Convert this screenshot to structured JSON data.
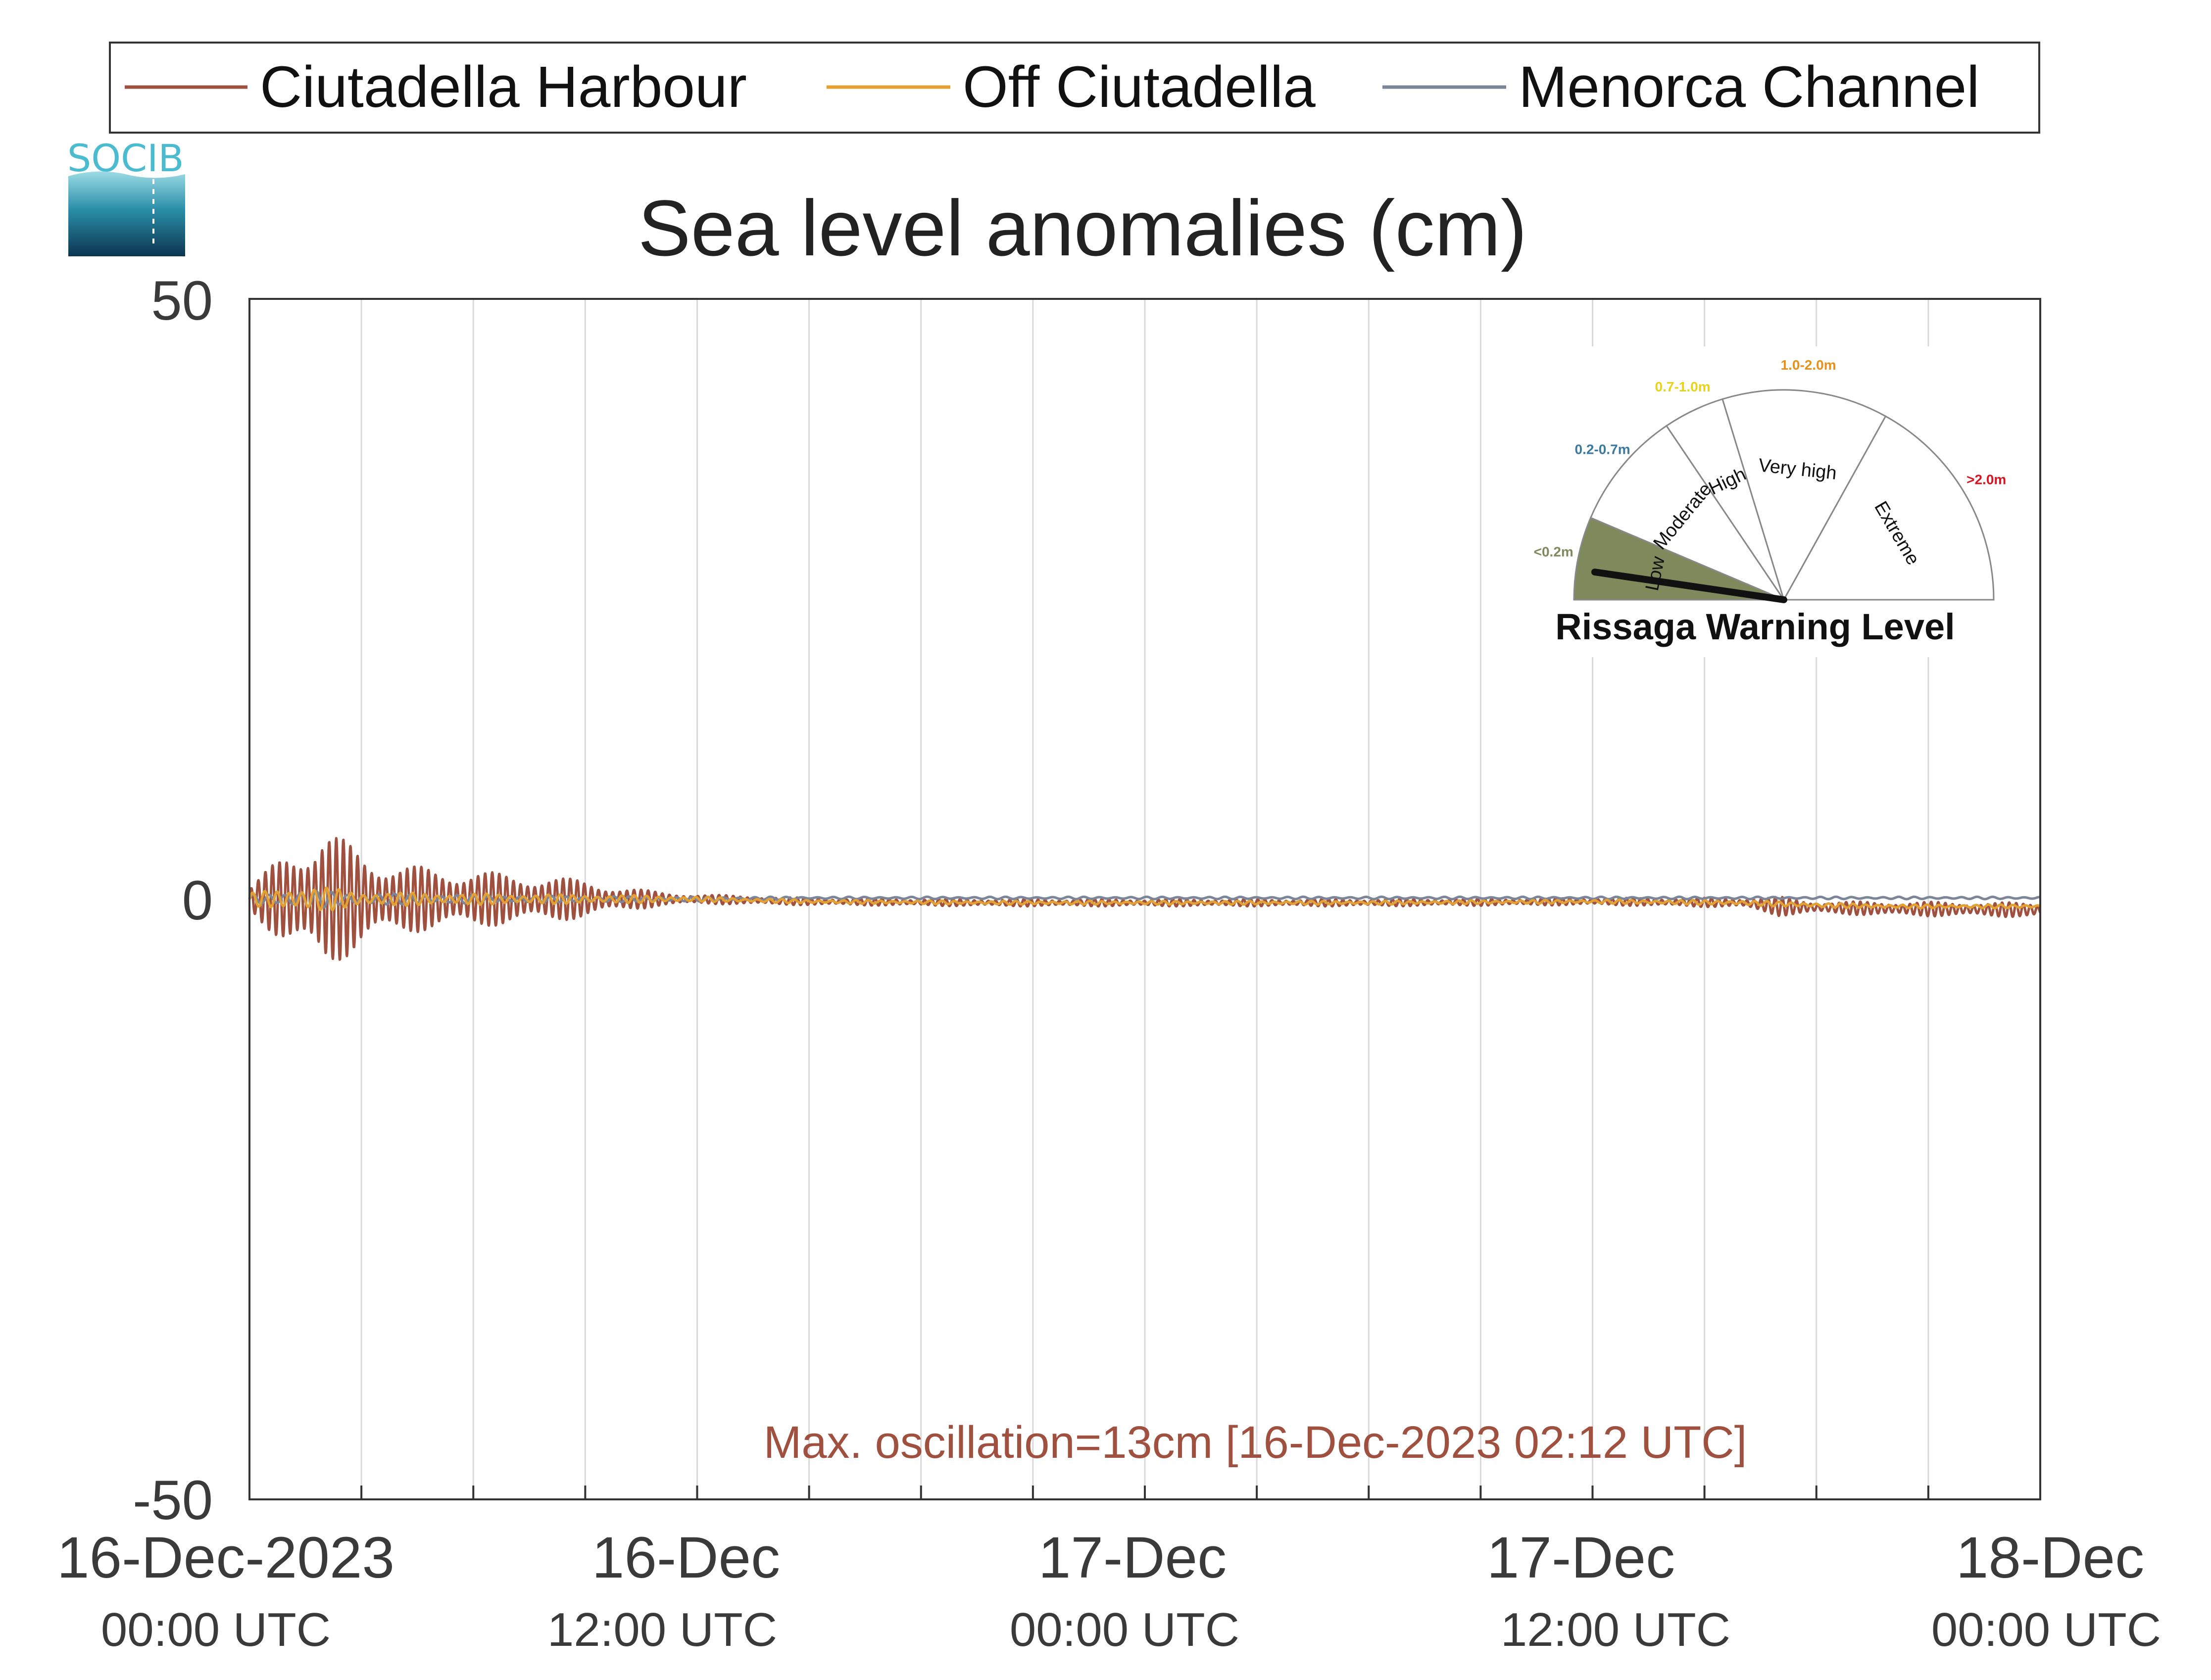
{
  "colors": {
    "harbour": "#a0503f",
    "off": "#e3a133",
    "channel": "#7d8599",
    "annotation": "#a0503f",
    "low_fill": "#7f8a5c",
    "range_low": "#7f8a5c",
    "range_moderate": "#3a7aa0",
    "range_high": "#e8d31a",
    "range_veryhigh": "#e8911a",
    "range_extreme": "#d8141e",
    "logo_text": "#4bbcd0"
  },
  "logo": {
    "text": "SOCIB",
    "icon": "socib-logo-icon"
  },
  "chart_data": {
    "type": "line",
    "title": "Sea level anomalies (cm)",
    "xlabel": "",
    "ylabel": "",
    "ylim": [
      -50,
      50
    ],
    "yticks": [
      "50",
      "0",
      "-50"
    ],
    "xlim_hours": [
      0,
      48
    ],
    "grid": "vertical, every 3 hours",
    "legend_position": "top, outside",
    "x_ticks": [
      {
        "date": "16-Dec-2023",
        "time": "00:00 UTC"
      },
      {
        "date": "16-Dec",
        "time": "12:00 UTC"
      },
      {
        "date": "17-Dec",
        "time": "00:00 UTC"
      },
      {
        "date": "17-Dec",
        "time": "12:00 UTC"
      },
      {
        "date": "18-Dec",
        "time": "00:00 UTC"
      }
    ],
    "annotation": "Max. oscillation=13cm [16-Dec-2023 02:12 UTC]",
    "series": [
      {
        "name": "Ciutadella Harbour",
        "envelope_x_hours": [
          0,
          1,
          2,
          2.5,
          3,
          4,
          5,
          6,
          7,
          8,
          9,
          10,
          11,
          12,
          15,
          20,
          30,
          36,
          40,
          41,
          42,
          44,
          48
        ],
        "envelope_amp_cm": [
          1,
          4,
          6,
          5,
          4,
          3,
          2.5,
          2.5,
          2,
          2,
          1.5,
          1,
          0.6,
          0.4,
          0.3,
          0.3,
          0.3,
          0.3,
          0.4,
          0.8,
          0.5,
          0.6,
          0.6
        ],
        "envelope_offset_cm": [
          0,
          0,
          0,
          0,
          0,
          0,
          0,
          0,
          0,
          0,
          0,
          0,
          0,
          0,
          -0.2,
          -0.3,
          -0.3,
          -0.2,
          -0.3,
          -0.6,
          -0.7,
          -0.8,
          -0.9
        ]
      },
      {
        "name": "Off Ciutadella",
        "envelope_x_hours": [
          0,
          1,
          2,
          3,
          5,
          8,
          11,
          12,
          15,
          20,
          30,
          36,
          40,
          42,
          44,
          48
        ],
        "envelope_amp_cm": [
          0.5,
          1,
          1,
          0.6,
          0.5,
          0.4,
          0.3,
          0.2,
          0.15,
          0.15,
          0.15,
          0.15,
          0.2,
          0.2,
          0.15,
          0.15
        ],
        "envelope_offset_cm": [
          0,
          0,
          0,
          0,
          0,
          0,
          0,
          0,
          -0.2,
          -0.3,
          -0.3,
          -0.2,
          -0.3,
          -0.5,
          -0.6,
          -0.6
        ]
      },
      {
        "name": "Menorca Channel",
        "envelope_x_hours": [
          0,
          1,
          2,
          3,
          5,
          8,
          11,
          12,
          15,
          20,
          30,
          36,
          40,
          42,
          44,
          48
        ],
        "envelope_amp_cm": [
          0.4,
          0.7,
          0.7,
          0.5,
          0.4,
          0.3,
          0.2,
          0.2,
          0.1,
          0.1,
          0.1,
          0.1,
          0.1,
          0.1,
          0.1,
          0.1
        ],
        "envelope_offset_cm": [
          0,
          0,
          0,
          0,
          0,
          0,
          0,
          0,
          0.1,
          0.1,
          0.1,
          0.1,
          0.1,
          0.1,
          0.1,
          0.1
        ]
      }
    ]
  },
  "gauge": {
    "title": "Rissaga Warning Level",
    "levels": [
      {
        "label": "Low",
        "range": "<0.2m",
        "color_key": "range_low"
      },
      {
        "label": "Moderate",
        "range": "0.2-0.7m",
        "color_key": "range_moderate"
      },
      {
        "label": "High",
        "range": "0.7-1.0m",
        "color_key": "range_high"
      },
      {
        "label": "Very high",
        "range": "1.0-2.0m",
        "color_key": "range_veryhigh"
      },
      {
        "label": "Extreme",
        "range": ">2.0m",
        "color_key": "range_extreme"
      }
    ],
    "active_level": "Low"
  }
}
